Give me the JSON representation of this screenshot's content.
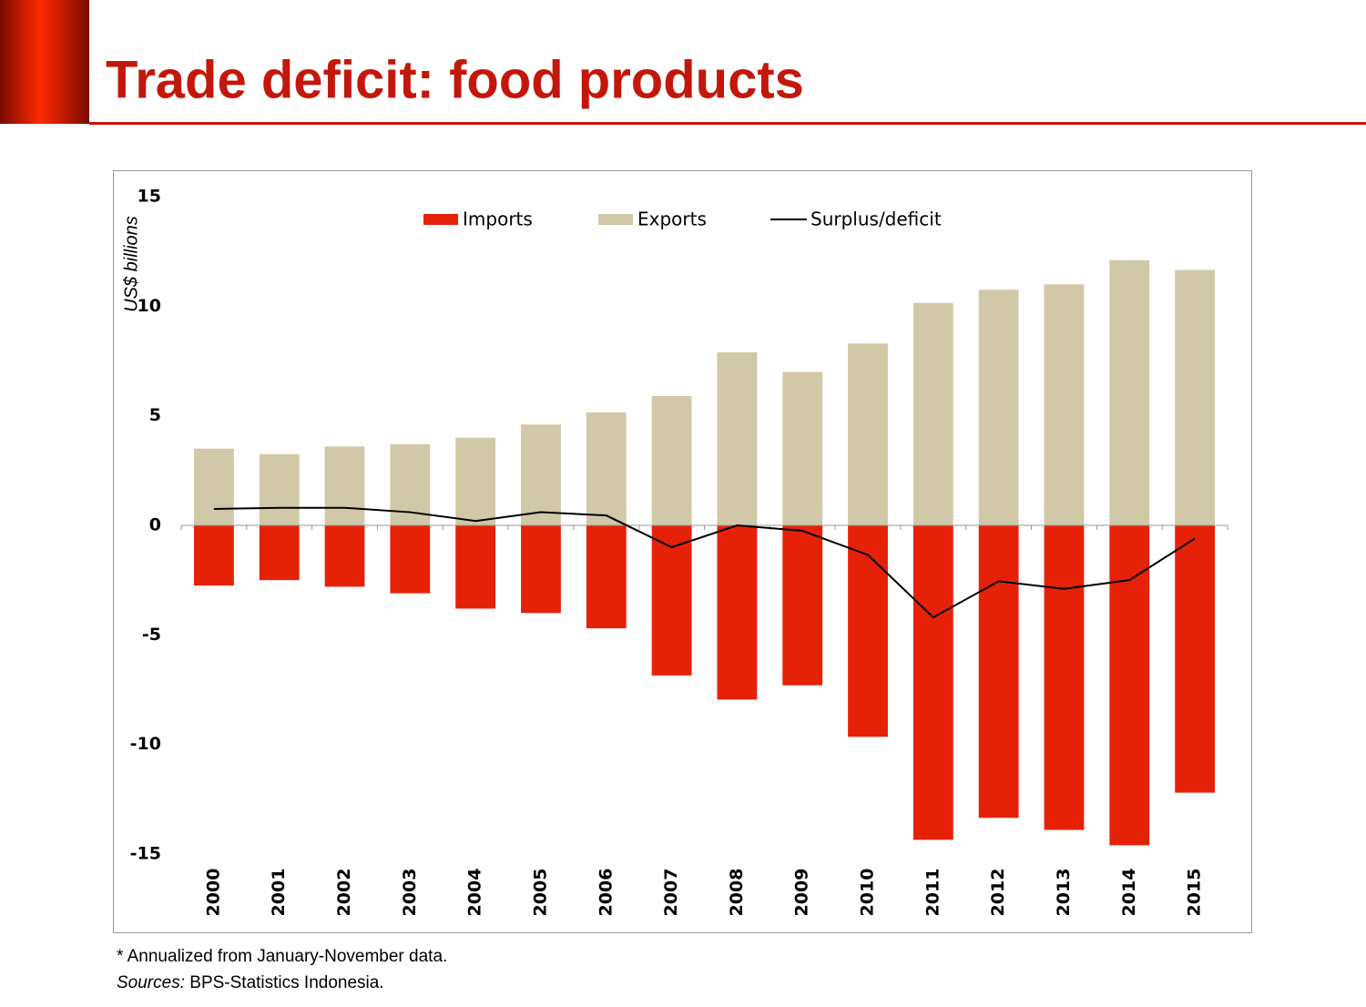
{
  "header": {
    "title": "Trade deficit: food products"
  },
  "chart_data": {
    "type": "bar",
    "y_label": "US$ billions",
    "categories": [
      "2000",
      "2001",
      "2002",
      "2003",
      "2004",
      "2005",
      "2006",
      "2007",
      "2008",
      "2009",
      "2010",
      "2011",
      "2012",
      "2013",
      "2014",
      "2015"
    ],
    "series": [
      {
        "name": "Imports",
        "type": "bar",
        "color": "#e52207",
        "values": [
          -2.75,
          -2.5,
          -2.8,
          -3.1,
          -3.8,
          -4.0,
          -4.7,
          -6.85,
          -7.95,
          -7.3,
          -9.65,
          -14.35,
          -13.35,
          -13.9,
          -14.6,
          -12.2
        ]
      },
      {
        "name": "Exports",
        "type": "bar",
        "color": "#d0c8a6",
        "values": [
          3.5,
          3.25,
          3.6,
          3.7,
          4.0,
          4.6,
          5.15,
          5.9,
          7.9,
          7.0,
          8.3,
          10.15,
          10.75,
          11.0,
          12.1,
          11.65
        ]
      },
      {
        "name": "Surplus/deficit",
        "type": "line",
        "color": "#000000",
        "values": [
          0.75,
          0.8,
          0.8,
          0.6,
          0.2,
          0.6,
          0.45,
          -1.0,
          0.0,
          -0.25,
          -1.35,
          -4.2,
          -2.55,
          -2.9,
          -2.5,
          -0.6
        ]
      }
    ],
    "ylim": [
      -15,
      15
    ],
    "yticks": [
      -15,
      -10,
      -5,
      0,
      5,
      10,
      15
    ],
    "grid": false,
    "legend": "top"
  },
  "footnote": {
    "note": "* Annualized from January-November data.",
    "source_label": "Sources:",
    "source_text": "BPS-Statistics Indonesia."
  }
}
